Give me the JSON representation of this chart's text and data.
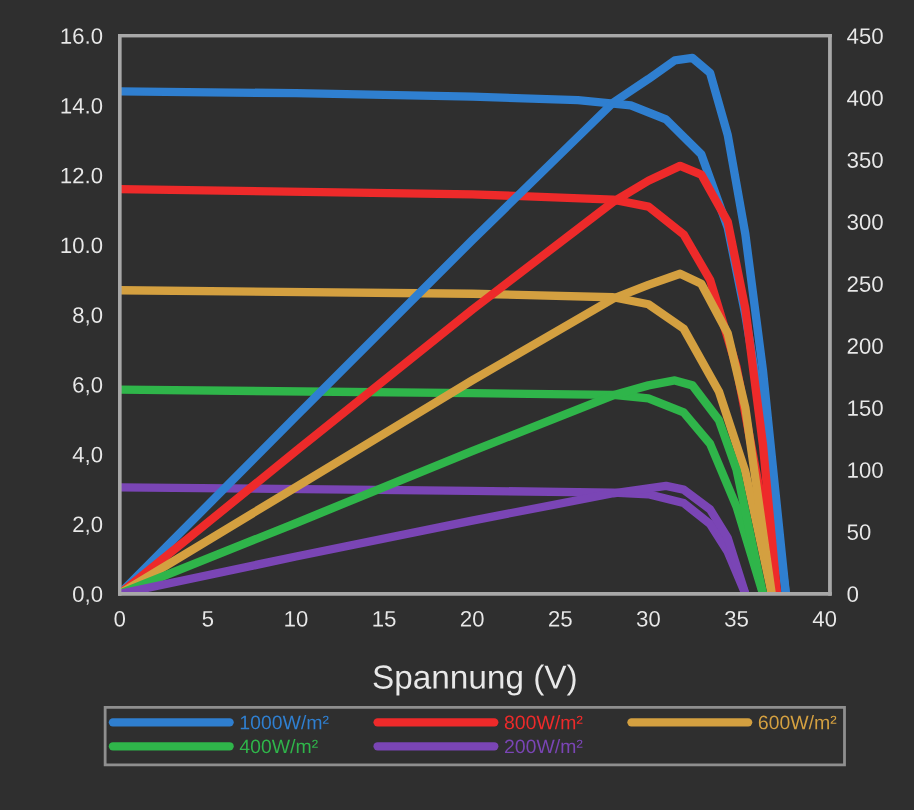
{
  "chart_data": {
    "type": "line",
    "xlabel": "Spannung (V)",
    "xlim": [
      0,
      40.3
    ],
    "xticks": [
      0,
      5,
      10,
      15,
      20,
      25,
      30,
      35,
      40
    ],
    "ylim": [
      0,
      16
    ],
    "yticks": [
      {
        "value": 0,
        "label": "0,0"
      },
      {
        "value": 2,
        "label": "2,0"
      },
      {
        "value": 4,
        "label": "4,0"
      },
      {
        "value": 6,
        "label": "6,0"
      },
      {
        "value": 8,
        "label": "8,0"
      },
      {
        "value": 10,
        "label": "10.0"
      },
      {
        "value": 12,
        "label": "12.0"
      },
      {
        "value": 14,
        "label": "14.0"
      },
      {
        "value": 16,
        "label": "16.0"
      }
    ],
    "y2lim": [
      0,
      450
    ],
    "y2ticks": [
      0,
      50,
      100,
      150,
      200,
      250,
      300,
      350,
      400,
      450
    ],
    "grid": false,
    "legend": "bottom",
    "marker": "none",
    "line_style": "solid",
    "series": [
      {
        "name": "1000W/m²",
        "color": "#2f7fd0",
        "x": [
          0,
          10,
          20,
          26,
          29,
          31,
          33,
          34.5,
          35.5,
          36.5,
          37.8
        ],
        "values": [
          14.4,
          14.35,
          14.25,
          14.15,
          14.0,
          13.6,
          12.6,
          10.5,
          8,
          5,
          0
        ]
      },
      {
        "name": "800W/m²",
        "color": "#ee2a2a",
        "x": [
          0,
          20,
          28,
          30,
          32,
          33.5,
          35,
          36.3,
          37.3
        ],
        "values": [
          11.6,
          11.45,
          11.3,
          11.1,
          10.3,
          9,
          6.5,
          3,
          0
        ]
      },
      {
        "name": "600W/m²",
        "color": "#d4a040",
        "x": [
          0,
          20,
          28,
          30,
          32,
          34,
          35.5,
          37
        ],
        "values": [
          8.7,
          8.6,
          8.5,
          8.3,
          7.6,
          5.8,
          3.5,
          0
        ]
      },
      {
        "name": "400W/m²",
        "color": "#2fb54a",
        "x": [
          0,
          20,
          28,
          30,
          32,
          33.5,
          35,
          36.5
        ],
        "values": [
          5.85,
          5.75,
          5.7,
          5.6,
          5.2,
          4.3,
          2.5,
          0
        ]
      },
      {
        "name": "200W/m²",
        "color": "#7a45b5",
        "x": [
          0,
          20,
          28,
          30,
          32,
          33.5,
          34.5,
          35.5
        ],
        "values": [
          3.05,
          2.95,
          2.9,
          2.85,
          2.6,
          2.0,
          1.2,
          0
        ]
      },
      {
        "color": "#2f7fd0",
        "axis": "y2",
        "x": [
          0,
          10,
          20,
          28,
          30,
          31.5,
          32.5,
          33.5,
          34.5,
          35.5,
          36.5,
          37.8
        ],
        "values": [
          0,
          143,
          285,
          396,
          415,
          430,
          432,
          420,
          370,
          290,
          180,
          0
        ]
      },
      {
        "color": "#ee2a2a",
        "axis": "y2",
        "x": [
          0,
          10,
          20,
          28,
          30,
          31.8,
          33,
          34.5,
          35.5,
          36.5,
          37.3
        ],
        "values": [
          0,
          115,
          229,
          316,
          333,
          345,
          338,
          300,
          230,
          120,
          0
        ]
      },
      {
        "color": "#d4a040",
        "axis": "y2",
        "x": [
          0,
          10,
          20,
          28,
          30,
          31.8,
          33,
          34.5,
          35.5,
          37
        ],
        "values": [
          0,
          86,
          172,
          238,
          249,
          258,
          250,
          210,
          150,
          0
        ]
      },
      {
        "color": "#2fb54a",
        "axis": "y2",
        "x": [
          0,
          10,
          20,
          28,
          30,
          31.5,
          32.5,
          34,
          35,
          36.5
        ],
        "values": [
          0,
          57,
          115,
          160,
          168,
          172,
          168,
          140,
          100,
          0
        ]
      },
      {
        "color": "#7a45b5",
        "axis": "y2",
        "x": [
          0,
          10,
          20,
          28,
          30,
          31,
          32,
          33.5,
          34.5,
          35.5
        ],
        "values": [
          0,
          30,
          59,
          81,
          85,
          87,
          84,
          68,
          45,
          0
        ]
      }
    ]
  }
}
